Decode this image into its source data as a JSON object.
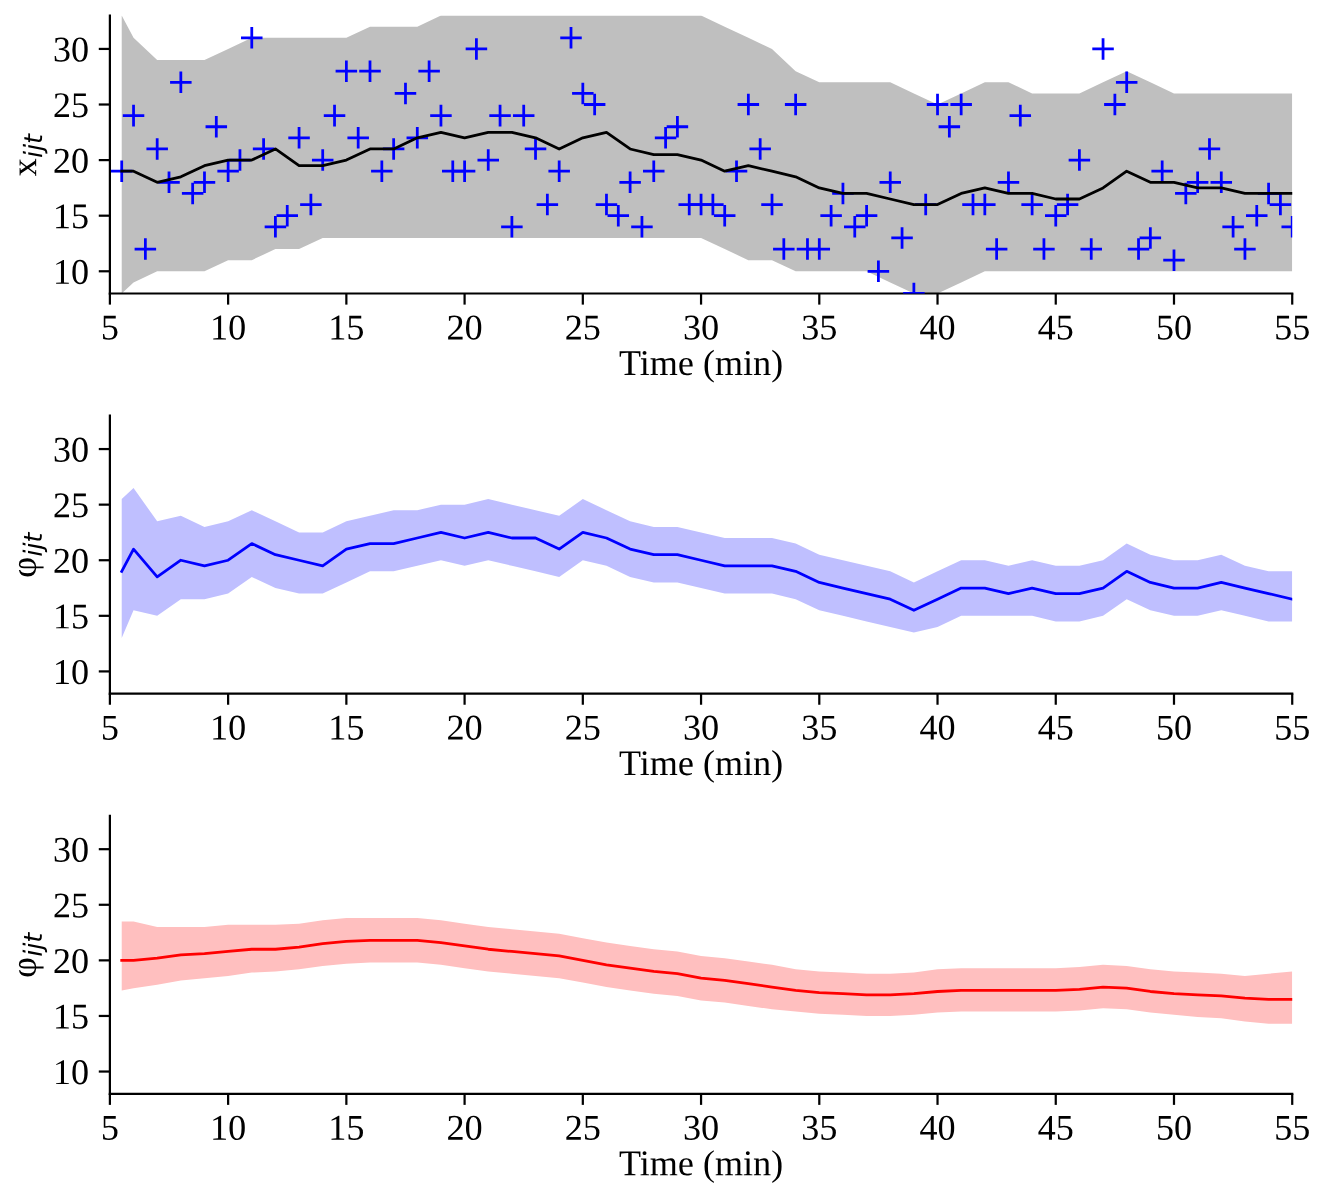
{
  "chart_data": [
    {
      "type": "line",
      "xlabel": "Time (min)",
      "ylabel": "x$_{ijt}$",
      "xlim": [
        5,
        55
      ],
      "ylim": [
        8,
        33
      ],
      "xticks": [
        5,
        10,
        15,
        20,
        25,
        30,
        35,
        40,
        45,
        50,
        55
      ],
      "yticks": [
        10,
        15,
        20,
        25,
        30
      ],
      "grid": false,
      "legend": false,
      "series": [
        {
          "color": "#000000",
          "x": [
            5.5,
            6,
            7,
            8,
            9,
            10,
            11,
            12,
            13,
            14,
            15,
            16,
            17,
            18,
            19,
            20,
            21,
            22,
            23,
            24,
            25,
            26,
            27,
            28,
            29,
            30,
            31,
            32,
            33,
            34,
            35,
            36,
            37,
            38,
            39,
            40,
            41,
            42,
            43,
            44,
            45,
            46,
            47,
            48,
            49,
            50,
            51,
            52,
            53,
            54,
            55
          ],
          "values": [
            19,
            19,
            18,
            18.5,
            19.5,
            20,
            20,
            21,
            19.5,
            19.5,
            20,
            21,
            21,
            22,
            22.5,
            22,
            22.5,
            22.5,
            22,
            21,
            22,
            22.5,
            21,
            20.5,
            20.5,
            20,
            19,
            19.5,
            19,
            18.5,
            17.5,
            17,
            17,
            16.5,
            16,
            16,
            17,
            17.5,
            17,
            17,
            16.5,
            16.5,
            17.5,
            19,
            18,
            18,
            17.5,
            17.5,
            17,
            17,
            17
          ],
          "upper": [
            33,
            31,
            29,
            29,
            29,
            30,
            31,
            31,
            31,
            31,
            31,
            32,
            32,
            32,
            33,
            33,
            33,
            33,
            33,
            33,
            33,
            33,
            33,
            33,
            33,
            33,
            32,
            31,
            30,
            28,
            27,
            27,
            27,
            27,
            26,
            25,
            26,
            27,
            27,
            26,
            26,
            26,
            27,
            28,
            27,
            26,
            26,
            26,
            26,
            26,
            26
          ],
          "lower": [
            8,
            9,
            10,
            10,
            10,
            11,
            11,
            12,
            12,
            13,
            13,
            13,
            13,
            13,
            13,
            13,
            13,
            13,
            13,
            13,
            13,
            13,
            13,
            13,
            13,
            13,
            12,
            11,
            11,
            10,
            10,
            10,
            10,
            9,
            8,
            8,
            9,
            10,
            10,
            10,
            10,
            10,
            10,
            10,
            10,
            10,
            10,
            10,
            10,
            10,
            10
          ]
        },
        {
          "type": "scatter",
          "marker": "cross",
          "color": "#0000ff",
          "x": [
            5.5,
            6,
            6.5,
            7,
            7.5,
            8,
            8.5,
            9,
            9.5,
            10,
            10.5,
            11,
            11.5,
            12,
            12.5,
            13,
            13.5,
            14,
            14.5,
            15,
            15.5,
            16,
            16.5,
            17,
            17.5,
            18,
            18.5,
            19,
            19.5,
            20,
            20.5,
            21,
            21.5,
            22,
            22.5,
            23,
            23.5,
            24,
            24.5,
            25,
            25.5,
            26,
            26.5,
            27,
            27.5,
            28,
            28.5,
            29,
            29.5,
            30,
            30.5,
            31,
            31.5,
            32,
            32.5,
            33,
            33.5,
            34,
            34.5,
            35,
            35.5,
            36,
            36.5,
            37,
            37.5,
            38,
            38.5,
            39,
            39.5,
            40,
            40.5,
            41,
            41.5,
            42,
            42.5,
            43,
            43.5,
            44,
            44.5,
            45,
            45.5,
            46,
            46.5,
            47,
            47.5,
            48,
            48.5,
            49,
            49.5,
            50,
            50.5,
            51,
            51.5,
            52,
            52.5,
            53,
            53.5,
            54,
            54.5,
            55
          ],
          "values": [
            19,
            24,
            12,
            21,
            18,
            27,
            17,
            18,
            23,
            19,
            20,
            31,
            21,
            14,
            15,
            22,
            16,
            20,
            24,
            28,
            22,
            28,
            19,
            21,
            26,
            22,
            28,
            24,
            19,
            19,
            30,
            20,
            24,
            14,
            24,
            21,
            16,
            19,
            31,
            26,
            25,
            16,
            15,
            18,
            14,
            19,
            22,
            23,
            16,
            16,
            16,
            15,
            19,
            25,
            21,
            16,
            12,
            25,
            12,
            12,
            15,
            17,
            14,
            15,
            10,
            18,
            13,
            8,
            16,
            25,
            23,
            25,
            16,
            16,
            12,
            18,
            24,
            16,
            12,
            15,
            16,
            20,
            12,
            30,
            25,
            27,
            12,
            13,
            19,
            11,
            17,
            18,
            21,
            18,
            14,
            12,
            15,
            17,
            16,
            14
          ]
        }
      ]
    },
    {
      "type": "line",
      "xlabel": "Time (min)",
      "ylabel": "φ$_{ijt}$",
      "xlim": [
        5,
        55
      ],
      "ylim": [
        8,
        33
      ],
      "xticks": [
        5,
        10,
        15,
        20,
        25,
        30,
        35,
        40,
        45,
        50,
        55
      ],
      "yticks": [
        10,
        15,
        20,
        25,
        30
      ],
      "grid": false,
      "legend": false,
      "series": [
        {
          "color": "#0000ff",
          "x": [
            5.5,
            6,
            7,
            8,
            9,
            10,
            11,
            12,
            13,
            14,
            15,
            16,
            17,
            18,
            19,
            20,
            21,
            22,
            23,
            24,
            25,
            26,
            27,
            28,
            29,
            30,
            31,
            32,
            33,
            34,
            35,
            36,
            37,
            38,
            39,
            40,
            41,
            42,
            43,
            44,
            45,
            46,
            47,
            48,
            49,
            50,
            51,
            52,
            53,
            54,
            55
          ],
          "values": [
            19,
            21,
            18.5,
            20,
            19.5,
            20,
            21.5,
            20.5,
            20,
            19.5,
            21,
            21.5,
            21.5,
            22,
            22.5,
            22,
            22.5,
            22,
            22,
            21,
            22.5,
            22,
            21,
            20.5,
            20.5,
            20,
            19.5,
            19.5,
            19.5,
            19,
            18,
            17.5,
            17,
            16.5,
            15.5,
            16.5,
            17.5,
            17.5,
            17,
            17.5,
            17,
            17,
            17.5,
            19,
            18,
            17.5,
            17.5,
            18,
            17.5,
            17,
            16.5
          ],
          "upper": [
            25.5,
            26.5,
            23.5,
            24,
            23,
            23.5,
            24.5,
            23.5,
            22.5,
            22.5,
            23.5,
            24,
            24.5,
            24.5,
            25,
            25,
            25.5,
            25,
            24.5,
            24,
            25.5,
            24.5,
            23.5,
            23,
            23,
            22.5,
            22,
            22,
            22,
            21.5,
            20.5,
            20,
            19.5,
            19,
            18,
            19,
            20,
            20,
            19.5,
            20,
            19.5,
            19.5,
            20,
            21.5,
            20.5,
            20,
            20,
            20.5,
            19.5,
            19,
            19
          ],
          "lower": [
            13,
            15.5,
            15,
            16.5,
            16.5,
            17,
            18.5,
            17.5,
            17,
            17,
            18,
            19,
            19,
            19.5,
            20,
            19.5,
            20,
            19.5,
            19,
            18.5,
            20,
            19.5,
            18.5,
            18,
            18,
            17.5,
            17,
            17,
            17,
            16.5,
            15.5,
            15,
            14.5,
            14,
            13.5,
            14,
            15,
            15,
            15,
            15,
            14.5,
            14.5,
            15,
            16.5,
            15.5,
            15,
            15,
            15.5,
            15,
            14.5,
            14.5
          ]
        }
      ]
    },
    {
      "type": "line",
      "xlabel": "Time (min)",
      "ylabel": "φ$_{ijt}$",
      "xlim": [
        5,
        55
      ],
      "ylim": [
        8,
        33
      ],
      "xticks": [
        5,
        10,
        15,
        20,
        25,
        30,
        35,
        40,
        45,
        50,
        55
      ],
      "yticks": [
        10,
        15,
        20,
        25,
        30
      ],
      "grid": false,
      "legend": false,
      "series": [
        {
          "color": "#ff0000",
          "x": [
            5.5,
            6,
            7,
            8,
            9,
            10,
            11,
            12,
            13,
            14,
            15,
            16,
            17,
            18,
            19,
            20,
            21,
            22,
            23,
            24,
            25,
            26,
            27,
            28,
            29,
            30,
            31,
            32,
            33,
            34,
            35,
            36,
            37,
            38,
            39,
            40,
            41,
            42,
            43,
            44,
            45,
            46,
            47,
            48,
            49,
            50,
            51,
            52,
            53,
            54,
            55
          ],
          "values": [
            20,
            20,
            20.2,
            20.5,
            20.6,
            20.8,
            21,
            21,
            21.2,
            21.5,
            21.7,
            21.8,
            21.8,
            21.8,
            21.6,
            21.3,
            21,
            20.8,
            20.6,
            20.4,
            20,
            19.6,
            19.3,
            19,
            18.8,
            18.4,
            18.2,
            17.9,
            17.6,
            17.3,
            17.1,
            17,
            16.9,
            16.9,
            17,
            17.2,
            17.3,
            17.3,
            17.3,
            17.3,
            17.3,
            17.4,
            17.6,
            17.5,
            17.2,
            17,
            16.9,
            16.8,
            16.6,
            16.5,
            16.5
          ],
          "upper": [
            23.5,
            23.5,
            23,
            23,
            23,
            23.2,
            23.2,
            23.2,
            23.3,
            23.6,
            23.8,
            23.8,
            23.8,
            23.8,
            23.6,
            23.3,
            23,
            22.8,
            22.6,
            22.4,
            22,
            21.6,
            21.3,
            21,
            20.8,
            20.4,
            20.2,
            19.9,
            19.6,
            19.2,
            19,
            18.9,
            18.8,
            18.8,
            18.9,
            19.2,
            19.3,
            19.3,
            19.3,
            19.3,
            19.3,
            19.4,
            19.6,
            19.5,
            19.2,
            19,
            18.9,
            18.8,
            18.6,
            18.8,
            19
          ],
          "lower": [
            17.3,
            17.5,
            17.8,
            18.2,
            18.4,
            18.6,
            18.9,
            19,
            19.2,
            19.5,
            19.7,
            19.8,
            19.8,
            19.8,
            19.6,
            19.3,
            19,
            18.8,
            18.6,
            18.4,
            18,
            17.6,
            17.3,
            17,
            16.8,
            16.4,
            16.2,
            15.9,
            15.6,
            15.4,
            15.2,
            15.1,
            15,
            15,
            15.1,
            15.3,
            15.4,
            15.4,
            15.4,
            15.4,
            15.4,
            15.5,
            15.7,
            15.6,
            15.3,
            15.1,
            14.9,
            14.8,
            14.5,
            14.3,
            14.3
          ]
        }
      ]
    }
  ]
}
